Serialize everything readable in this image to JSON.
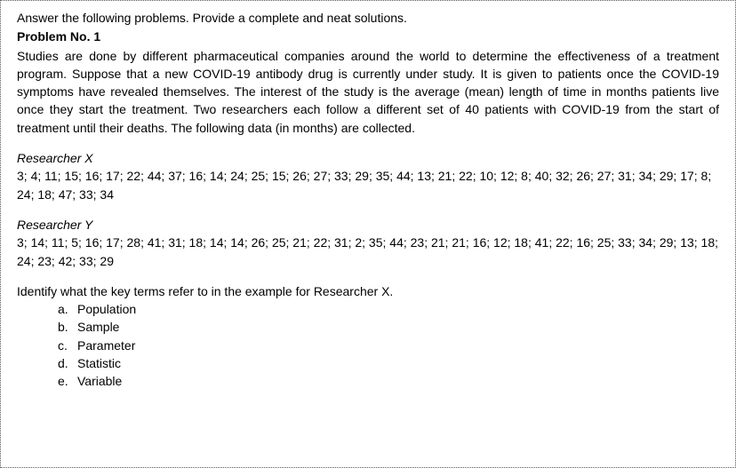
{
  "doc": {
    "intro": "Answer the following problems. Provide a complete and neat solutions.",
    "problem_label": "Problem No. 1",
    "body": "Studies are done by different pharmaceutical companies around the world to determine the effectiveness of a treatment program. Suppose that a new COVID-19 antibody drug is currently under study. It is given to patients once the COVID-19 symptoms have revealed themselves. The interest of the study is the average (mean) length of time in months patients live once they start the treatment.  Two researchers each follow a different set of 40 patients with COVID-19 from the start of treatment until their deaths. The following data (in months) are collected.",
    "researcher_x": {
      "label": "Researcher X",
      "data": "3; 4; 11; 15; 16; 17; 22; 44; 37; 16; 14; 24; 25; 15; 26; 27; 33; 29; 35; 44; 13; 21; 22; 10; 12; 8; 40; 32; 26; 27; 31; 34; 29; 17; 8; 24; 18; 47; 33; 34"
    },
    "researcher_y": {
      "label": "Researcher Y",
      "data": "3; 14; 11; 5; 16; 17; 28; 41; 31; 18; 14; 14; 26; 25; 21; 22; 31; 2; 35; 44; 23; 21; 21; 16; 12; 18; 41; 22; 16; 25; 33; 34; 29; 13; 18; 24; 23; 42; 33; 29"
    },
    "identify": "Identify what the key terms refer to in the example for Researcher X.",
    "items": [
      {
        "marker": "a.",
        "text": "Population"
      },
      {
        "marker": "b.",
        "text": "Sample"
      },
      {
        "marker": "c.",
        "text": "Parameter"
      },
      {
        "marker": "d.",
        "text": "Statistic"
      },
      {
        "marker": "e.",
        "text": "Variable"
      }
    ]
  }
}
